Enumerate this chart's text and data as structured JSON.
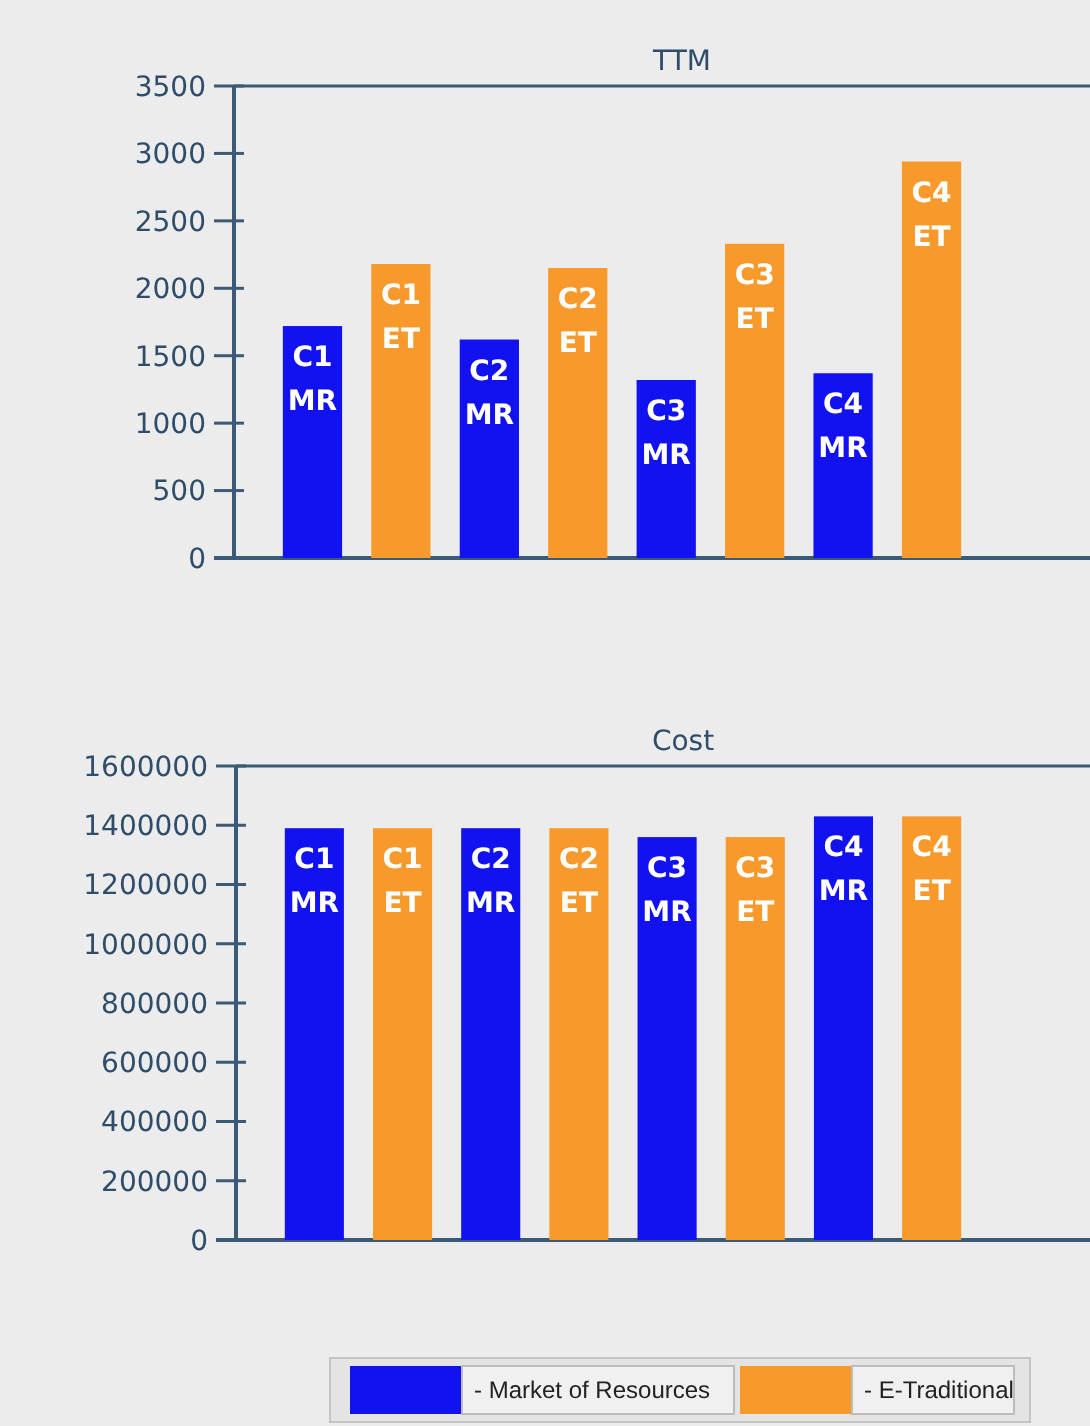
{
  "chart_data": [
    {
      "type": "bar",
      "title": "TTM",
      "categories": [
        "C1 MR",
        "C1 ET",
        "C2 MR",
        "C2 ET",
        "C3 MR",
        "C3 ET",
        "C4 MR",
        "C4 ET"
      ],
      "series": [
        {
          "color": "#1212f0",
          "values": [
            1720,
            null,
            1620,
            null,
            1320,
            null,
            1370,
            null
          ]
        },
        {
          "color": "#f7992b",
          "values": [
            null,
            2180,
            null,
            2150,
            null,
            2330,
            null,
            2940
          ]
        }
      ],
      "ylim": [
        0,
        3500
      ],
      "yticks": [
        0,
        500,
        1000,
        1500,
        2000,
        2500,
        3000,
        3500
      ],
      "grid": false,
      "legend": false
    },
    {
      "type": "bar",
      "title": "Cost",
      "categories": [
        "C1 MR",
        "C1 ET",
        "C2 MR",
        "C2 ET",
        "C3 MR",
        "C3 ET",
        "C4 MR",
        "C4 ET"
      ],
      "series": [
        {
          "name": "- Market of Resources",
          "color": "#1212f0",
          "values": [
            1390000,
            null,
            1390000,
            null,
            1360000,
            null,
            1430000,
            null
          ]
        },
        {
          "name": "- E-Traditional",
          "color": "#f7992b",
          "values": [
            null,
            1390000,
            null,
            1390000,
            null,
            1360000,
            null,
            1430000
          ]
        }
      ],
      "ylim": [
        0,
        1600000
      ],
      "yticks": [
        0,
        200000,
        400000,
        600000,
        800000,
        1000000,
        1200000,
        1400000,
        1600000
      ],
      "grid": false,
      "legend": "bottom"
    }
  ]
}
